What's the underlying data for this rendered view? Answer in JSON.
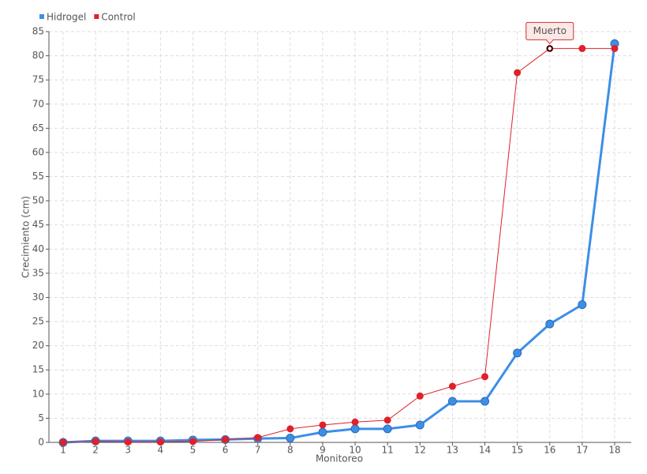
{
  "chart_data": {
    "type": "line",
    "x_label": "Monitoreo",
    "y_label": "Crecimiento (cm)",
    "categories": [
      "1",
      "2",
      "3",
      "4",
      "5",
      "6",
      "7",
      "8",
      "9",
      "10",
      "11",
      "12",
      "13",
      "14",
      "15",
      "16",
      "17",
      "18"
    ],
    "series": [
      {
        "name": "Hidrogel",
        "color": "#3d8ee6",
        "values": [
          0,
          0.3,
          0.3,
          0.3,
          0.5,
          0.6,
          0.8,
          0.9,
          2.1,
          2.8,
          2.8,
          3.6,
          8.5,
          8.5,
          18.5,
          24.5,
          28.5,
          82.5
        ]
      },
      {
        "name": "Control",
        "color": "#e0202a",
        "values": [
          0,
          0.2,
          0.1,
          0.1,
          0.2,
          0.6,
          1.0,
          2.8,
          3.6,
          4.2,
          4.6,
          9.6,
          11.6,
          13.6,
          76.5,
          81.5,
          81.5,
          81.5
        ]
      }
    ],
    "annotations": [
      {
        "text": "Muerto"
      }
    ],
    "ylim": [
      0,
      85
    ],
    "yticks": [
      0,
      5,
      10,
      15,
      20,
      25,
      30,
      35,
      40,
      45,
      50,
      55,
      60,
      65,
      70,
      75,
      80,
      85
    ],
    "grid": true,
    "legend": "top-left"
  }
}
